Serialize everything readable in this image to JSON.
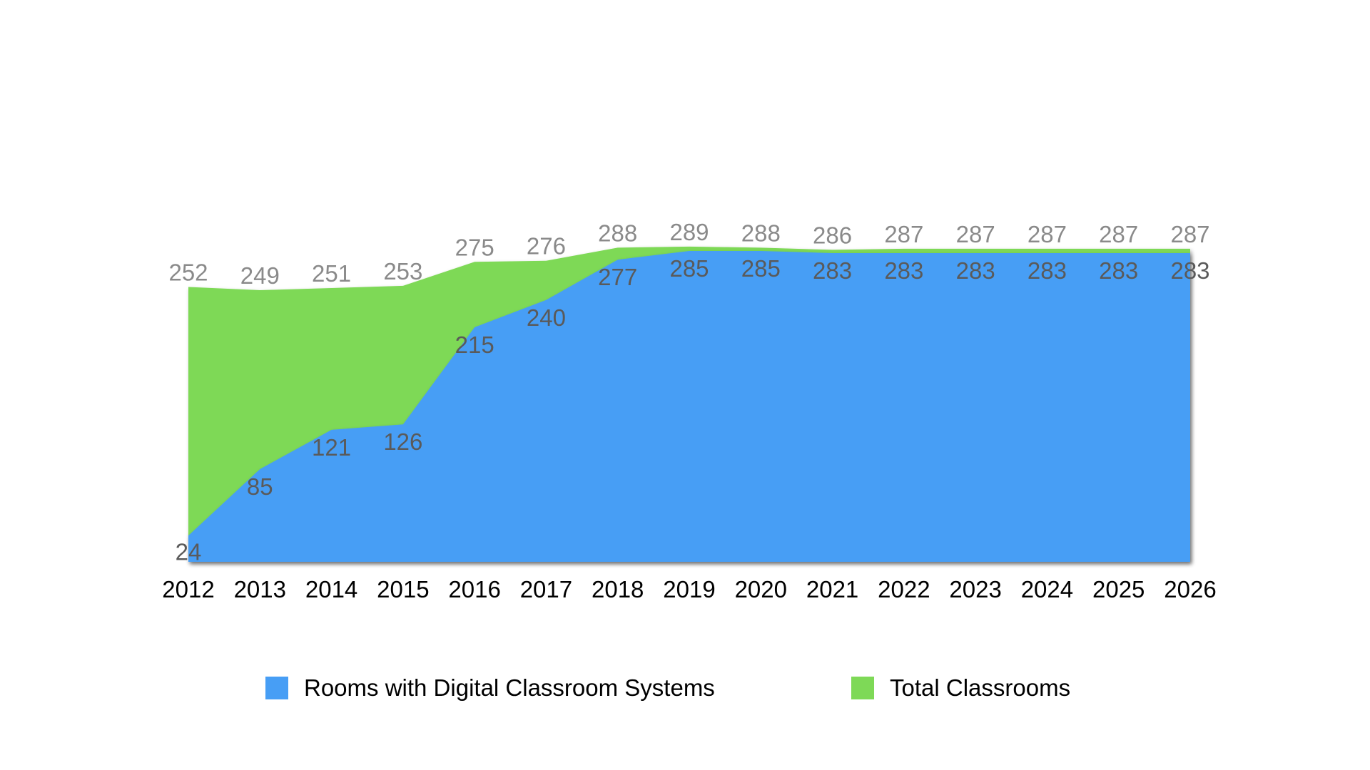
{
  "chart_data": {
    "type": "area",
    "stacked": false,
    "title": "",
    "xlabel": "",
    "ylabel": "",
    "ylim": [
      0,
      300
    ],
    "grid": false,
    "legend_position": "bottom",
    "categories": [
      "2012",
      "2013",
      "2014",
      "2015",
      "2016",
      "2017",
      "2018",
      "2019",
      "2020",
      "2021",
      "2022",
      "2023",
      "2024",
      "2025",
      "2026"
    ],
    "series": [
      {
        "name": "Rooms with Digital Classroom Systems",
        "color": "#479ef5",
        "values": [
          24,
          85,
          121,
          126,
          215,
          240,
          277,
          285,
          285,
          283,
          283,
          283,
          283,
          283,
          283
        ]
      },
      {
        "name": "Total Classrooms",
        "color": "#7ed957",
        "values": [
          252,
          249,
          251,
          253,
          275,
          276,
          288,
          289,
          288,
          286,
          287,
          287,
          287,
          287,
          287
        ]
      }
    ]
  }
}
